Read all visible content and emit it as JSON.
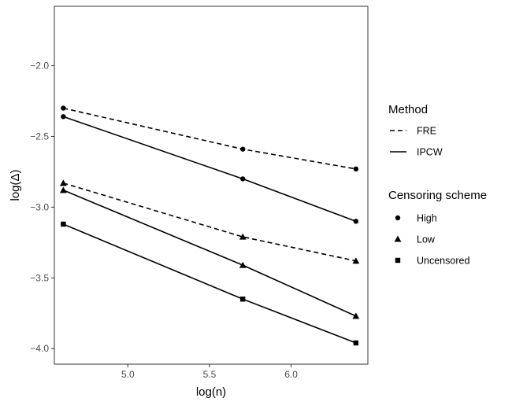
{
  "chart_data": {
    "type": "line",
    "xlabel": "log(n)",
    "ylabel": "log(Δ)",
    "xlim": [
      4.55,
      6.47
    ],
    "ylim": [
      -4.11,
      -1.58
    ],
    "x_ticks": [
      5.0,
      5.5,
      6.0
    ],
    "x_tick_labels": [
      "5.0",
      "5.5",
      "6.0"
    ],
    "y_ticks": [
      -2.0,
      -2.5,
      -3.0,
      -3.5,
      -4.0
    ],
    "y_tick_labels": [
      "−2.0",
      "−2.5",
      "−3.0",
      "−3.5",
      "−4.0"
    ],
    "grid": false,
    "legend_position": "right",
    "legend": {
      "method": {
        "title": "Method",
        "entries": [
          {
            "label": "FRE",
            "linestyle": "dashed"
          },
          {
            "label": "IPCW",
            "linestyle": "solid"
          }
        ]
      },
      "censoring": {
        "title": "Censoring scheme",
        "entries": [
          {
            "label": "High",
            "marker": "circle"
          },
          {
            "label": "Low",
            "marker": "triangle"
          },
          {
            "label": "Uncensored",
            "marker": "square"
          }
        ]
      }
    },
    "series": [
      {
        "method": "FRE",
        "censoring": "High",
        "linestyle": "dashed",
        "marker": "circle",
        "x": [
          4.605,
          5.704,
          6.397
        ],
        "y": [
          -2.3,
          -2.59,
          -2.73
        ]
      },
      {
        "method": "IPCW",
        "censoring": "High",
        "linestyle": "solid",
        "marker": "circle",
        "x": [
          4.605,
          5.704,
          6.397
        ],
        "y": [
          -2.36,
          -2.8,
          -3.1
        ]
      },
      {
        "method": "FRE",
        "censoring": "Low",
        "linestyle": "dashed",
        "marker": "triangle",
        "x": [
          4.605,
          5.704,
          6.397
        ],
        "y": [
          -2.83,
          -3.21,
          -3.38
        ]
      },
      {
        "method": "IPCW",
        "censoring": "Low",
        "linestyle": "solid",
        "marker": "triangle",
        "x": [
          4.605,
          5.704,
          6.397
        ],
        "y": [
          -2.88,
          -3.41,
          -3.77
        ]
      },
      {
        "method": "IPCW",
        "censoring": "Uncensored",
        "linestyle": "solid",
        "marker": "square",
        "x": [
          4.605,
          5.704,
          6.397
        ],
        "y": [
          -3.12,
          -3.65,
          -3.96
        ]
      }
    ],
    "colors": {
      "line": "#000000",
      "axis": "#333333",
      "tick_label": "#4d4d4d"
    }
  }
}
